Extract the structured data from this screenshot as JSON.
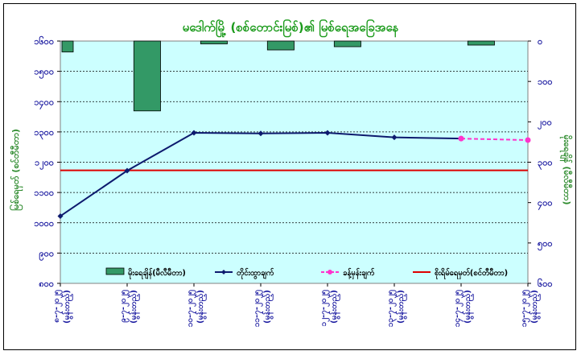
{
  "chart_data": {
    "type": "bar+line",
    "title": "မဒေါက်မြို့ (စစ်တောင်းမြစ်)၏ မြစ်ရေအခြေအနေ",
    "ylabel_left": "မြစ်ရေမှတ် (စင်တီမီတာ)",
    "ylabel_right": "မိုးရေချိန် (မီလီမီတာ)",
    "categories": [
      [
        "၈-၇-၂၀၂၅",
        "(မွန်းတည့်)"
      ],
      [
        "၉-၇-၂၀၂၅",
        "(မွန်းတည့်)"
      ],
      [
        "၁၀-၇-၂၀၂၅",
        "(မွန်းတည့်)"
      ],
      [
        "၁၁-၇-၂၀၂၅",
        "(မွန်းတည့်)"
      ],
      [
        "၁၂-၇-၂၀၂၅",
        "(မွန်းတည့်)"
      ],
      [
        "၁၃-၇-၂၀၂၅",
        "(မွန်းတည့်)"
      ],
      [
        "၁၄-၇-၂၀၂၅",
        "(မွန်းတည့်)"
      ],
      [
        "၁၅-၇-၂၀၂၅",
        "(မွန်းတည့်)"
      ]
    ],
    "y_left": {
      "min": 800,
      "max": 1600,
      "ticks": [
        800,
        900,
        1000,
        1100,
        1200,
        1300,
        1400,
        1500,
        1600
      ],
      "tick_labels": [
        "၈၀၀",
        "၉၀၀",
        "၁၀၀၀",
        "၁၁၀၀",
        "၁၂၀၀",
        "၁၃၀၀",
        "၁၄၀၀",
        "၁၅၀၀",
        "၁၆၀၀"
      ]
    },
    "y_right": {
      "min": 0,
      "max": 600,
      "inverted": true,
      "ticks": [
        0,
        100,
        200,
        300,
        400,
        500,
        600
      ],
      "tick_labels": [
        "၀",
        "၁၀၀",
        "၂၀၀",
        "၃၀၀",
        "၄၀၀",
        "၅၀၀",
        "၆၀၀"
      ]
    },
    "series": [
      {
        "name": "မိုးရေချိန်(မီလီမီတာ)",
        "kind": "bar",
        "axis": "right",
        "color": "#339966",
        "values": [
          27,
          173,
          7,
          22,
          14,
          null,
          10,
          null
        ]
      },
      {
        "name": "တိုင်းထွာချက်",
        "kind": "line",
        "axis": "left",
        "color": "#0d1a6e",
        "values": [
          1022,
          1172,
          1297,
          1295,
          1297,
          1282,
          1278,
          null
        ]
      },
      {
        "name": "ခန့်မှန်းချက်",
        "kind": "dashed-line",
        "axis": "left",
        "color": "#ff33cc",
        "values": [
          null,
          null,
          null,
          null,
          null,
          null,
          1278,
          1273
        ]
      },
      {
        "name": "စိုးရိမ်ရေမှတ်(စင်တီမီတာ)",
        "kind": "hline",
        "axis": "left",
        "color": "#dd0000",
        "value": 1173
      }
    ],
    "grid": true,
    "legend_position": "bottom-inside"
  }
}
